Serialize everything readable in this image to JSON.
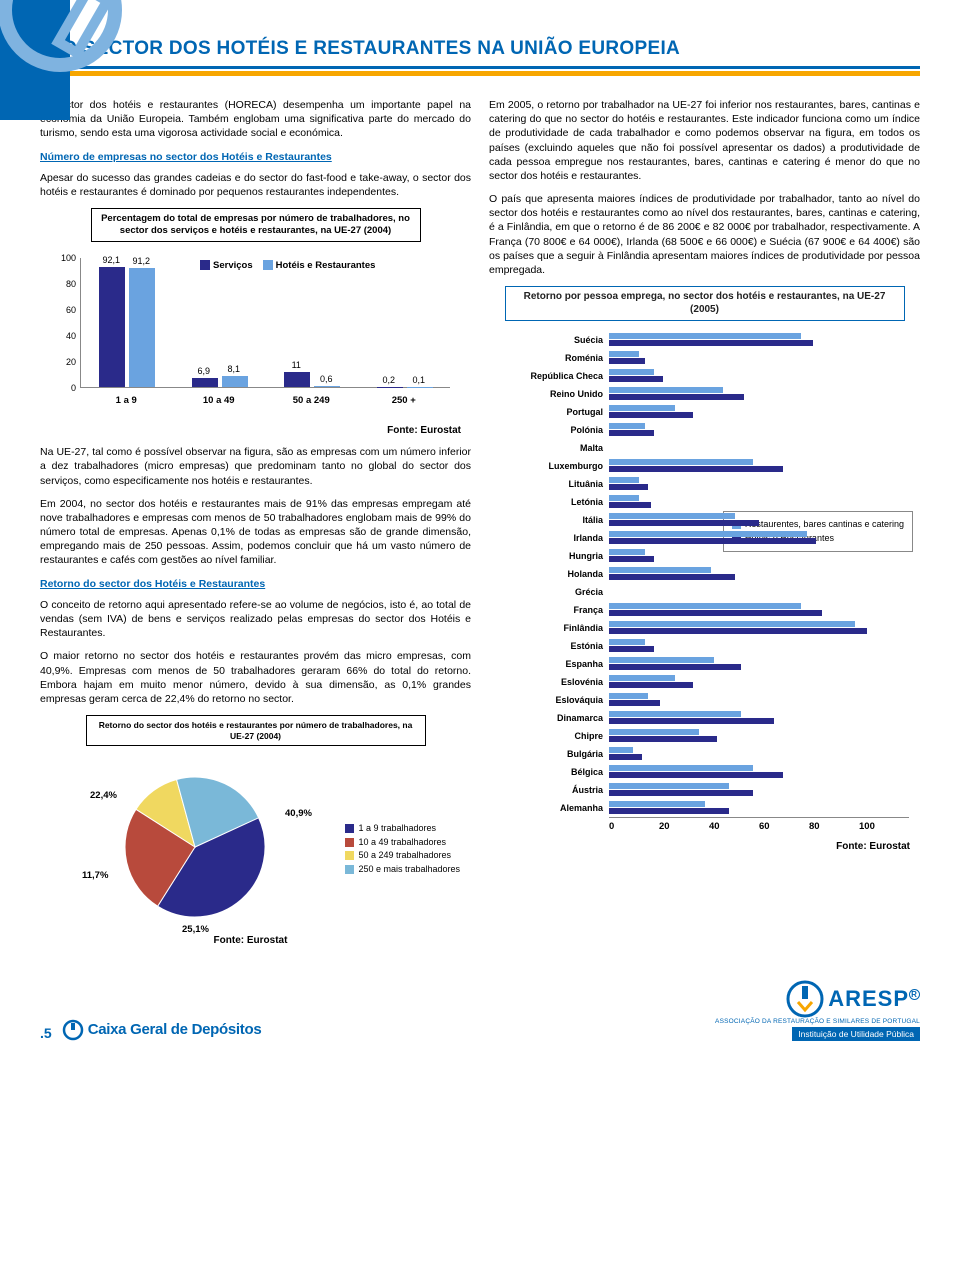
{
  "header": {
    "title": "2. O SECTOR DOS HOTÉIS E RESTAURANTES NA UNIÃO EUROPEIA"
  },
  "colors": {
    "primary": "#0066b3",
    "orange": "#f7a600",
    "series_blue_dark": "#2a2a8a",
    "series_blue_light": "#6aa3e0",
    "pie1": "#2a2a8a",
    "pie2": "#b84a3c",
    "pie3": "#f0d860",
    "pie4": "#7ab8d8",
    "hbar1": "#6aa3e0",
    "hbar2": "#2a2a8a"
  },
  "left": {
    "p1": "O sector dos hotéis e restaurantes (HORECA) desempenha um importante papel na economia da União Europeia. Também englobam uma significativa parte do mercado do turismo, sendo esta uma vigorosa actividade social e económica.",
    "sub1": "Número de empresas no sector dos Hotéis e Restaurantes",
    "p2": "Apesar do sucesso das grandes cadeias e do sector do fast-food e take-away, o sector dos hotéis e restaurantes é dominado por pequenos restaurantes independentes.",
    "chart1": {
      "title": "Percentagem do total de empresas por número de trabalhadores, no sector dos serviços e hotéis e restaurantes, na UE-27 (2004)",
      "series_names": [
        "Serviços",
        "Hotéis e Restaurantes"
      ],
      "categories": [
        "1 a 9",
        "10 a 49",
        "50 a 249",
        "250 +"
      ],
      "values_a": [
        92.1,
        6.9,
        11,
        0.2
      ],
      "values_b": [
        91.2,
        8.1,
        0.6,
        0.1
      ],
      "labels_a": [
        "92,1",
        "6,9",
        "11",
        "0,2"
      ],
      "labels_b": [
        "91,2",
        "8,1",
        "0,6",
        "0,1"
      ],
      "ylim": [
        0,
        100
      ],
      "yticks": [
        0,
        20,
        40,
        60,
        80,
        100
      ],
      "source": "Fonte: Eurostat"
    },
    "p3": "Na UE-27, tal como é possível observar na figura, são as empresas com um número inferior a dez trabalhadores (micro empresas) que predominam tanto no global do sector dos serviços, como especificamente nos hotéis e restaurantes.",
    "p4": "Em 2004, no sector dos hotéis e restaurantes mais de 91% das empresas empregam até nove trabalhadores e empresas com menos de 50 trabalhadores englobam mais de 99% do número total de empresas. Apenas 0,1% de todas as empresas são de grande dimensão, empregando mais de 250 pessoas. Assim, podemos concluir que há um vasto número de restaurantes e cafés com gestões ao nível familiar.",
    "sub2": "Retorno do sector dos Hotéis e Restaurantes",
    "p5": "O conceito de retorno aqui apresentado refere-se ao volume de negócios, isto é, ao total de vendas (sem IVA) de bens e serviços realizado pelas empresas do sector dos Hotéis e Restaurantes.",
    "p6": "O maior retorno no sector dos hotéis e restaurantes provém das micro empresas, com 40,9%. Empresas com menos de 50 trabalhadores geraram 66% do total do retorno. Embora hajam em muito menor número, devido à sua dimensão, as 0,1% grandes empresas geram cerca de 22,4% do retorno no sector.",
    "pie": {
      "title": "Retorno do sector dos hotéis e restaurantes por número de trabalhadores, na UE-27 (2004)",
      "slices": [
        {
          "label": "40,9%",
          "value": 40.9,
          "legend": "1 a 9 trabalhadores"
        },
        {
          "label": "25,1%",
          "value": 25.1,
          "legend": "10 a 49 trabalhadores"
        },
        {
          "label": "11,7%",
          "value": 11.7,
          "legend": "50 a 249 trabalhadores"
        },
        {
          "label": "22,4%",
          "value": 22.4,
          "legend": "250 e mais trabalhadores"
        }
      ],
      "source": "Fonte: Eurostat"
    }
  },
  "right": {
    "p1": "Em 2005, o retorno por trabalhador na UE-27 foi inferior nos restaurantes, bares, cantinas e catering do que no sector do hotéis e restaurantes. Este indicador funciona como um índice de produtividade de cada trabalhador e como podemos observar na figura, em todos os países (excluindo aqueles que não foi possível apresentar os dados) a produtividade de cada pessoa empregue nos restaurantes, bares, cantinas e catering é menor do que no sector dos hotéis e restaurantes.",
    "p2": "O país que apresenta maiores índices de produtividade por trabalhador, tanto ao nível do sector dos hotéis e restaurantes como ao nível dos restaurantes, bares, cantinas e catering, é a Finlândia, em que o retorno é de 86 200€ e 82 000€ por trabalhador, respectivamente. A França (70 800€ e 64 000€), Irlanda (68 500€ e 66 000€) e Suécia (67 900€ e 64 400€) são os países que a seguir à Finlândia apresentam maiores índices de produtividade por pessoa empregada.",
    "chart2": {
      "title": "Retorno por pessoa emprega, no sector dos hotéis e restaurantes, na UE-27 (2005)",
      "legend": [
        "Restaurentes, bares cantinas e catering",
        "Hotéis e Restaurantes"
      ],
      "xticks": [
        0,
        20,
        40,
        60,
        80,
        100
      ],
      "xlim": 100,
      "countries": [
        {
          "name": "Suécia",
          "v1": 64,
          "v2": 68
        },
        {
          "name": "Roménia",
          "v1": 10,
          "v2": 12
        },
        {
          "name": "República Checa",
          "v1": 15,
          "v2": 18
        },
        {
          "name": "Reino Unido",
          "v1": 38,
          "v2": 45
        },
        {
          "name": "Portugal",
          "v1": 22,
          "v2": 28
        },
        {
          "name": "Polónia",
          "v1": 12,
          "v2": 15
        },
        {
          "name": "Malta",
          "v1": 0,
          "v2": 0
        },
        {
          "name": "Luxemburgo",
          "v1": 48,
          "v2": 58
        },
        {
          "name": "Lituânia",
          "v1": 10,
          "v2": 13
        },
        {
          "name": "Letónia",
          "v1": 10,
          "v2": 14
        },
        {
          "name": "Itália",
          "v1": 42,
          "v2": 50
        },
        {
          "name": "Irlanda",
          "v1": 66,
          "v2": 69
        },
        {
          "name": "Hungria",
          "v1": 12,
          "v2": 15
        },
        {
          "name": "Holanda",
          "v1": 34,
          "v2": 42
        },
        {
          "name": "Grécia",
          "v1": 0,
          "v2": 0
        },
        {
          "name": "França",
          "v1": 64,
          "v2": 71
        },
        {
          "name": "Finlândia",
          "v1": 82,
          "v2": 86
        },
        {
          "name": "Estónia",
          "v1": 12,
          "v2": 15
        },
        {
          "name": "Espanha",
          "v1": 35,
          "v2": 44
        },
        {
          "name": "Eslovénia",
          "v1": 22,
          "v2": 28
        },
        {
          "name": "Eslováquia",
          "v1": 13,
          "v2": 17
        },
        {
          "name": "Dinamarca",
          "v1": 44,
          "v2": 55
        },
        {
          "name": "Chipre",
          "v1": 30,
          "v2": 36
        },
        {
          "name": "Bulgária",
          "v1": 8,
          "v2": 11
        },
        {
          "name": "Bélgica",
          "v1": 48,
          "v2": 58
        },
        {
          "name": "Áustria",
          "v1": 40,
          "v2": 48
        },
        {
          "name": "Alemanha",
          "v1": 32,
          "v2": 40
        }
      ],
      "source": "Fonte: Eurostat"
    }
  },
  "footer": {
    "page": ".5",
    "cgd": "Caixa Geral de Depósitos",
    "aresp": "ARESP",
    "aresp_sub": "ASSOCIAÇÃO DA RESTAURAÇÃO E SIMILARES DE PORTUGAL",
    "inst": "Instituição de Utilidade Pública"
  }
}
